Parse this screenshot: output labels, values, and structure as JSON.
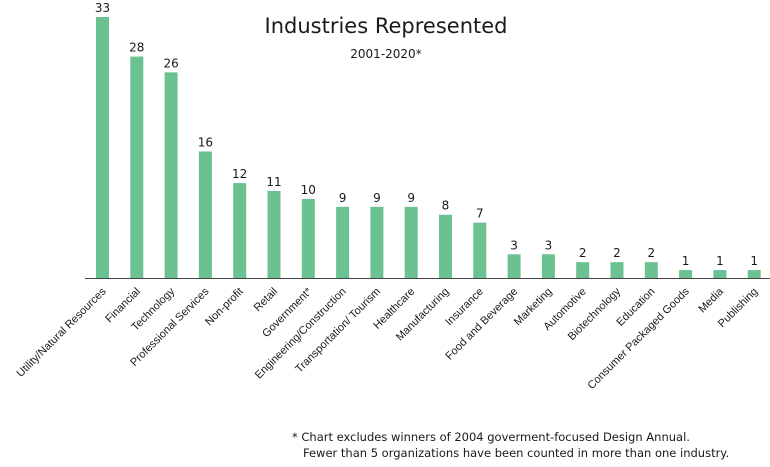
{
  "chart_data": {
    "type": "bar",
    "title": "Industries Represented",
    "subtitle": "2001-2020*",
    "categories": [
      "Utility/Natural Resources",
      "Financial",
      "Technology",
      "Professional Services",
      "Non-profit",
      "Retail",
      "Government*",
      "Engineering/Construction",
      "Transportation/ Tourism",
      "Healthcare",
      "Manufacturing",
      "Insurance",
      "Food and Beverage",
      "Marketing",
      "Automotive",
      "Biotechnology",
      "Education",
      "Consumer Packaged Goods",
      "Media",
      "Publishing"
    ],
    "values": [
      33,
      28,
      26,
      16,
      12,
      11,
      10,
      9,
      9,
      9,
      8,
      7,
      3,
      3,
      2,
      2,
      2,
      1,
      1,
      1
    ],
    "xlabel": "",
    "ylabel": "",
    "ylim": [
      0,
      33
    ],
    "grid": false,
    "bar_color": "#6cc191",
    "footnote": [
      "* Chart excludes winners of 2004 goverment-focused Design Annual.",
      "Fewer than 5 organizations have been counted in more than one industry."
    ]
  }
}
